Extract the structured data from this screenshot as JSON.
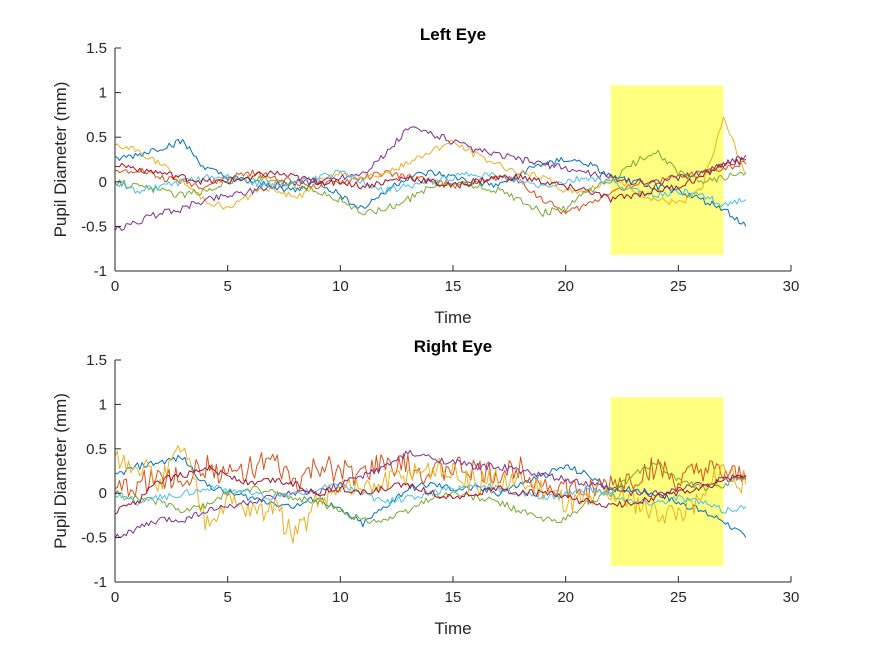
{
  "chart_data": [
    {
      "type": "line",
      "title": "Left Eye",
      "xlabel": "Time",
      "ylabel": "Pupil Diameter (mm)",
      "xlim": [
        0,
        30
      ],
      "ylim": [
        -1,
        1.5
      ],
      "xticks": [
        "0",
        "5",
        "10",
        "15",
        "20",
        "25",
        "30"
      ],
      "yticks": [
        "-1",
        "-0.5",
        "0",
        "0.5",
        "1",
        "1.5"
      ],
      "grid": false,
      "highlight": {
        "x": [
          22,
          27
        ],
        "y": [
          -0.82,
          1.08
        ],
        "color": "#ffff80"
      },
      "x": [
        0,
        1,
        2,
        3,
        4,
        5,
        6,
        7,
        8,
        9,
        10,
        11,
        12,
        13,
        14,
        15,
        16,
        17,
        18,
        19,
        20,
        21,
        22,
        23,
        24,
        25,
        26,
        27,
        28
      ],
      "series": [
        {
          "color": "#0072bd",
          "values": [
            0.25,
            0.3,
            0.38,
            0.45,
            0.15,
            0.05,
            0.0,
            -0.05,
            -0.1,
            0.0,
            -0.15,
            -0.3,
            -0.1,
            0.05,
            0.1,
            0.05,
            0.0,
            -0.05,
            0.1,
            0.2,
            0.25,
            0.2,
            0.05,
            0.0,
            -0.05,
            -0.1,
            -0.2,
            -0.3,
            -0.5
          ]
        },
        {
          "color": "#d95319",
          "values": [
            0.1,
            0.15,
            0.05,
            0.0,
            -0.05,
            0.05,
            0.1,
            0.05,
            0.0,
            -0.05,
            0.0,
            0.05,
            0.1,
            0.05,
            0.0,
            -0.05,
            0.0,
            0.05,
            0.0,
            -0.2,
            -0.35,
            -0.25,
            -0.1,
            -0.05,
            0.0,
            0.05,
            0.1,
            0.15,
            0.2
          ]
        },
        {
          "color": "#edb120",
          "values": [
            0.4,
            0.35,
            0.2,
            0.0,
            -0.2,
            -0.3,
            -0.15,
            -0.05,
            -0.2,
            0.0,
            0.1,
            0.05,
            0.1,
            0.2,
            0.35,
            0.45,
            0.3,
            0.2,
            0.1,
            0.05,
            -0.1,
            -0.1,
            0.05,
            -0.1,
            -0.2,
            -0.25,
            -0.1,
            0.7,
            0.1
          ]
        },
        {
          "color": "#7e2f8e",
          "values": [
            -0.55,
            -0.45,
            -0.35,
            -0.3,
            -0.2,
            -0.15,
            -0.1,
            -0.05,
            0.0,
            0.0,
            0.05,
            0.1,
            0.3,
            0.6,
            0.55,
            0.45,
            0.35,
            0.3,
            0.25,
            0.2,
            0.15,
            0.1,
            0.05,
            0.0,
            0.0,
            0.05,
            0.1,
            0.2,
            0.3
          ]
        },
        {
          "color": "#77ac30",
          "values": [
            0.0,
            -0.05,
            -0.1,
            -0.15,
            -0.1,
            0.0,
            0.05,
            0.0,
            -0.05,
            -0.1,
            -0.2,
            -0.35,
            -0.3,
            -0.2,
            -0.05,
            0.0,
            -0.05,
            -0.1,
            -0.2,
            -0.35,
            -0.3,
            -0.1,
            0.0,
            0.2,
            0.35,
            0.1,
            0.0,
            0.05,
            0.1
          ]
        },
        {
          "color": "#4dbeee",
          "values": [
            0.0,
            -0.1,
            -0.05,
            0.0,
            0.05,
            0.05,
            0.0,
            -0.05,
            0.0,
            0.05,
            0.1,
            0.0,
            -0.1,
            -0.05,
            0.0,
            0.05,
            0.1,
            0.05,
            0.0,
            -0.05,
            0.0,
            0.05,
            0.0,
            -0.1,
            -0.15,
            -0.1,
            -0.15,
            -0.25,
            -0.2
          ]
        },
        {
          "color": "#a2142f",
          "values": [
            0.2,
            0.15,
            0.1,
            0.05,
            0.0,
            0.0,
            0.05,
            0.1,
            0.05,
            0.0,
            0.0,
            -0.05,
            0.0,
            0.05,
            0.0,
            -0.05,
            0.0,
            0.05,
            0.05,
            0.0,
            -0.05,
            -0.1,
            -0.2,
            -0.15,
            -0.1,
            -0.05,
            0.05,
            0.2,
            0.25
          ]
        }
      ]
    },
    {
      "type": "line",
      "title": "Right Eye",
      "xlabel": "Time",
      "ylabel": "Pupil Diameter (mm)",
      "xlim": [
        0,
        30
      ],
      "ylim": [
        -1,
        1.5
      ],
      "xticks": [
        "0",
        "5",
        "10",
        "15",
        "20",
        "25",
        "30"
      ],
      "yticks": [
        "-1",
        "-0.5",
        "0",
        "0.5",
        "1",
        "1.5"
      ],
      "grid": false,
      "highlight": {
        "x": [
          22,
          27
        ],
        "y": [
          -0.82,
          1.08
        ],
        "color": "#ffff80"
      },
      "x": [
        0,
        1,
        2,
        3,
        4,
        5,
        6,
        7,
        8,
        9,
        10,
        11,
        12,
        13,
        14,
        15,
        16,
        17,
        18,
        19,
        20,
        21,
        22,
        23,
        24,
        25,
        26,
        27,
        28
      ],
      "series": [
        {
          "color": "#0072bd",
          "values": [
            0.2,
            0.3,
            0.35,
            0.4,
            0.1,
            0.0,
            -0.05,
            -0.1,
            -0.15,
            -0.05,
            -0.2,
            -0.35,
            -0.15,
            0.05,
            0.1,
            0.05,
            0.05,
            0.0,
            0.1,
            0.2,
            0.3,
            0.2,
            0.05,
            0.05,
            0.0,
            -0.1,
            -0.2,
            -0.3,
            -0.5
          ]
        },
        {
          "color": "#d95319",
          "values": [
            0.0,
            0.1,
            0.2,
            0.15,
            0.3,
            0.2,
            0.3,
            0.35,
            0.1,
            0.3,
            0.25,
            0.2,
            0.35,
            0.3,
            0.2,
            0.3,
            0.25,
            0.2,
            0.3,
            0.1,
            0.05,
            0.0,
            0.1,
            0.15,
            0.3,
            0.1,
            0.25,
            0.2,
            0.15
          ]
        },
        {
          "color": "#edb120",
          "values": [
            0.4,
            0.35,
            0.1,
            0.55,
            -0.3,
            -0.1,
            -0.2,
            -0.15,
            -0.5,
            -0.1,
            0.1,
            0.0,
            0.1,
            0.2,
            0.3,
            0.2,
            0.1,
            0.15,
            0.1,
            0.05,
            -0.1,
            -0.1,
            0.0,
            -0.1,
            -0.2,
            -0.2,
            -0.1,
            0.3,
            0.1
          ]
        },
        {
          "color": "#7e2f8e",
          "values": [
            -0.5,
            -0.4,
            -0.3,
            -0.3,
            -0.2,
            -0.15,
            -0.1,
            -0.05,
            0.0,
            0.0,
            0.1,
            0.2,
            0.3,
            0.45,
            0.4,
            0.35,
            0.3,
            0.3,
            0.25,
            0.2,
            0.15,
            0.1,
            0.05,
            0.0,
            0.0,
            0.05,
            0.1,
            0.15,
            0.2
          ]
        },
        {
          "color": "#77ac30",
          "values": [
            0.0,
            -0.05,
            -0.1,
            -0.2,
            -0.15,
            0.0,
            0.05,
            0.0,
            -0.05,
            -0.1,
            -0.2,
            -0.3,
            -0.3,
            -0.2,
            -0.05,
            0.0,
            -0.05,
            -0.1,
            -0.2,
            -0.3,
            -0.3,
            -0.1,
            0.0,
            0.2,
            0.35,
            0.15,
            0.05,
            0.1,
            0.2
          ]
        },
        {
          "color": "#4dbeee",
          "values": [
            0.0,
            -0.1,
            -0.05,
            0.0,
            0.05,
            0.05,
            0.0,
            -0.05,
            0.0,
            0.05,
            0.1,
            0.0,
            -0.1,
            -0.05,
            0.0,
            0.05,
            0.1,
            0.05,
            0.0,
            -0.05,
            0.0,
            0.05,
            0.0,
            -0.1,
            -0.1,
            -0.05,
            -0.1,
            -0.2,
            -0.15
          ]
        },
        {
          "color": "#a2142f",
          "values": [
            -0.2,
            -0.1,
            0.15,
            0.2,
            0.3,
            0.2,
            0.1,
            0.15,
            0.1,
            0.0,
            0.05,
            0.0,
            0.05,
            0.1,
            0.0,
            -0.05,
            0.0,
            0.05,
            0.0,
            0.0,
            -0.05,
            -0.1,
            -0.15,
            -0.1,
            -0.05,
            0.0,
            0.05,
            0.15,
            0.2
          ]
        }
      ]
    }
  ]
}
